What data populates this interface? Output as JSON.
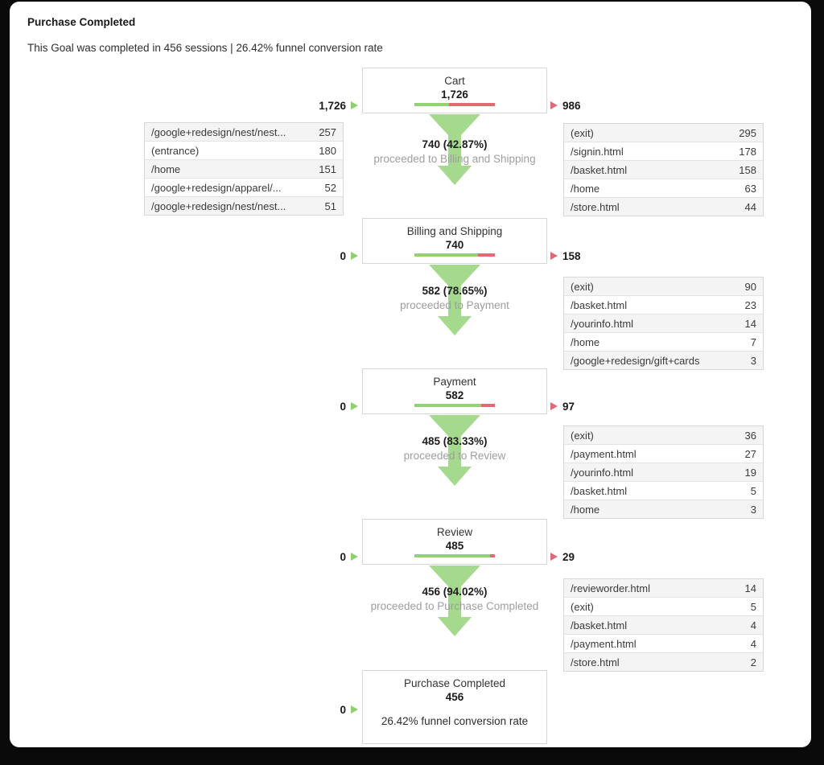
{
  "page": {
    "title": "Purchase Completed",
    "subtitle": "This Goal was completed in 456 sessions | 26.42% funnel conversion rate"
  },
  "colors": {
    "funnel_arrow_green": "#a5da8e",
    "bar_green": "#93d175",
    "bar_red": "#e16a73",
    "entrance_marker_green": "#8ed06f",
    "exit_marker_red": "#dd6a77",
    "muted_text": "#9e9e9e"
  },
  "chart_data": {
    "type": "funnel",
    "title": "Purchase Completed",
    "completed_sessions": 456,
    "funnel_conversion_rate": "26.42%",
    "steps": [
      {
        "name": "Cart",
        "count": "1,726",
        "entrances": "1,726",
        "exits": "986",
        "green_pct": 42.87,
        "proceed_value": "740 (42.87%)",
        "proceed_label": "proceeded to Billing and Shipping",
        "entrance_rows": [
          {
            "label": "/google+redesign/nest/nest...",
            "value": "257"
          },
          {
            "label": "(entrance)",
            "value": "180"
          },
          {
            "label": "/home",
            "value": "151"
          },
          {
            "label": "/google+redesign/apparel/...",
            "value": "52"
          },
          {
            "label": "/google+redesign/nest/nest...",
            "value": "51"
          }
        ],
        "exit_rows": [
          {
            "label": "(exit)",
            "value": "295"
          },
          {
            "label": "/signin.html",
            "value": "178"
          },
          {
            "label": "/basket.html",
            "value": "158"
          },
          {
            "label": "/home",
            "value": "63"
          },
          {
            "label": "/store.html",
            "value": "44"
          }
        ]
      },
      {
        "name": "Billing and Shipping",
        "count": "740",
        "entrances": "0",
        "exits": "158",
        "green_pct": 78.65,
        "proceed_value": "582 (78.65%)",
        "proceed_label": "proceeded to Payment",
        "exit_rows": [
          {
            "label": "(exit)",
            "value": "90"
          },
          {
            "label": "/basket.html",
            "value": "23"
          },
          {
            "label": "/yourinfo.html",
            "value": "14"
          },
          {
            "label": "/home",
            "value": "7"
          },
          {
            "label": "/google+redesign/gift+cards",
            "value": "3"
          }
        ]
      },
      {
        "name": "Payment",
        "count": "582",
        "entrances": "0",
        "exits": "97",
        "green_pct": 83.33,
        "proceed_value": "485 (83.33%)",
        "proceed_label": "proceeded to Review",
        "exit_rows": [
          {
            "label": "(exit)",
            "value": "36"
          },
          {
            "label": "/payment.html",
            "value": "27"
          },
          {
            "label": "/yourinfo.html",
            "value": "19"
          },
          {
            "label": "/basket.html",
            "value": "5"
          },
          {
            "label": "/home",
            "value": "3"
          }
        ]
      },
      {
        "name": "Review",
        "count": "485",
        "entrances": "0",
        "exits": "29",
        "green_pct": 94.02,
        "proceed_value": "456 (94.02%)",
        "proceed_label": "proceeded to Purchase Completed",
        "exit_rows": [
          {
            "label": "/revieworder.html",
            "value": "14"
          },
          {
            "label": "(exit)",
            "value": "5"
          },
          {
            "label": "/basket.html",
            "value": "4"
          },
          {
            "label": "/payment.html",
            "value": "4"
          },
          {
            "label": "/store.html",
            "value": "2"
          }
        ]
      },
      {
        "name": "Purchase Completed",
        "count": "456",
        "entrances": "0",
        "conversion_note": "26.42% funnel conversion rate"
      }
    ]
  }
}
